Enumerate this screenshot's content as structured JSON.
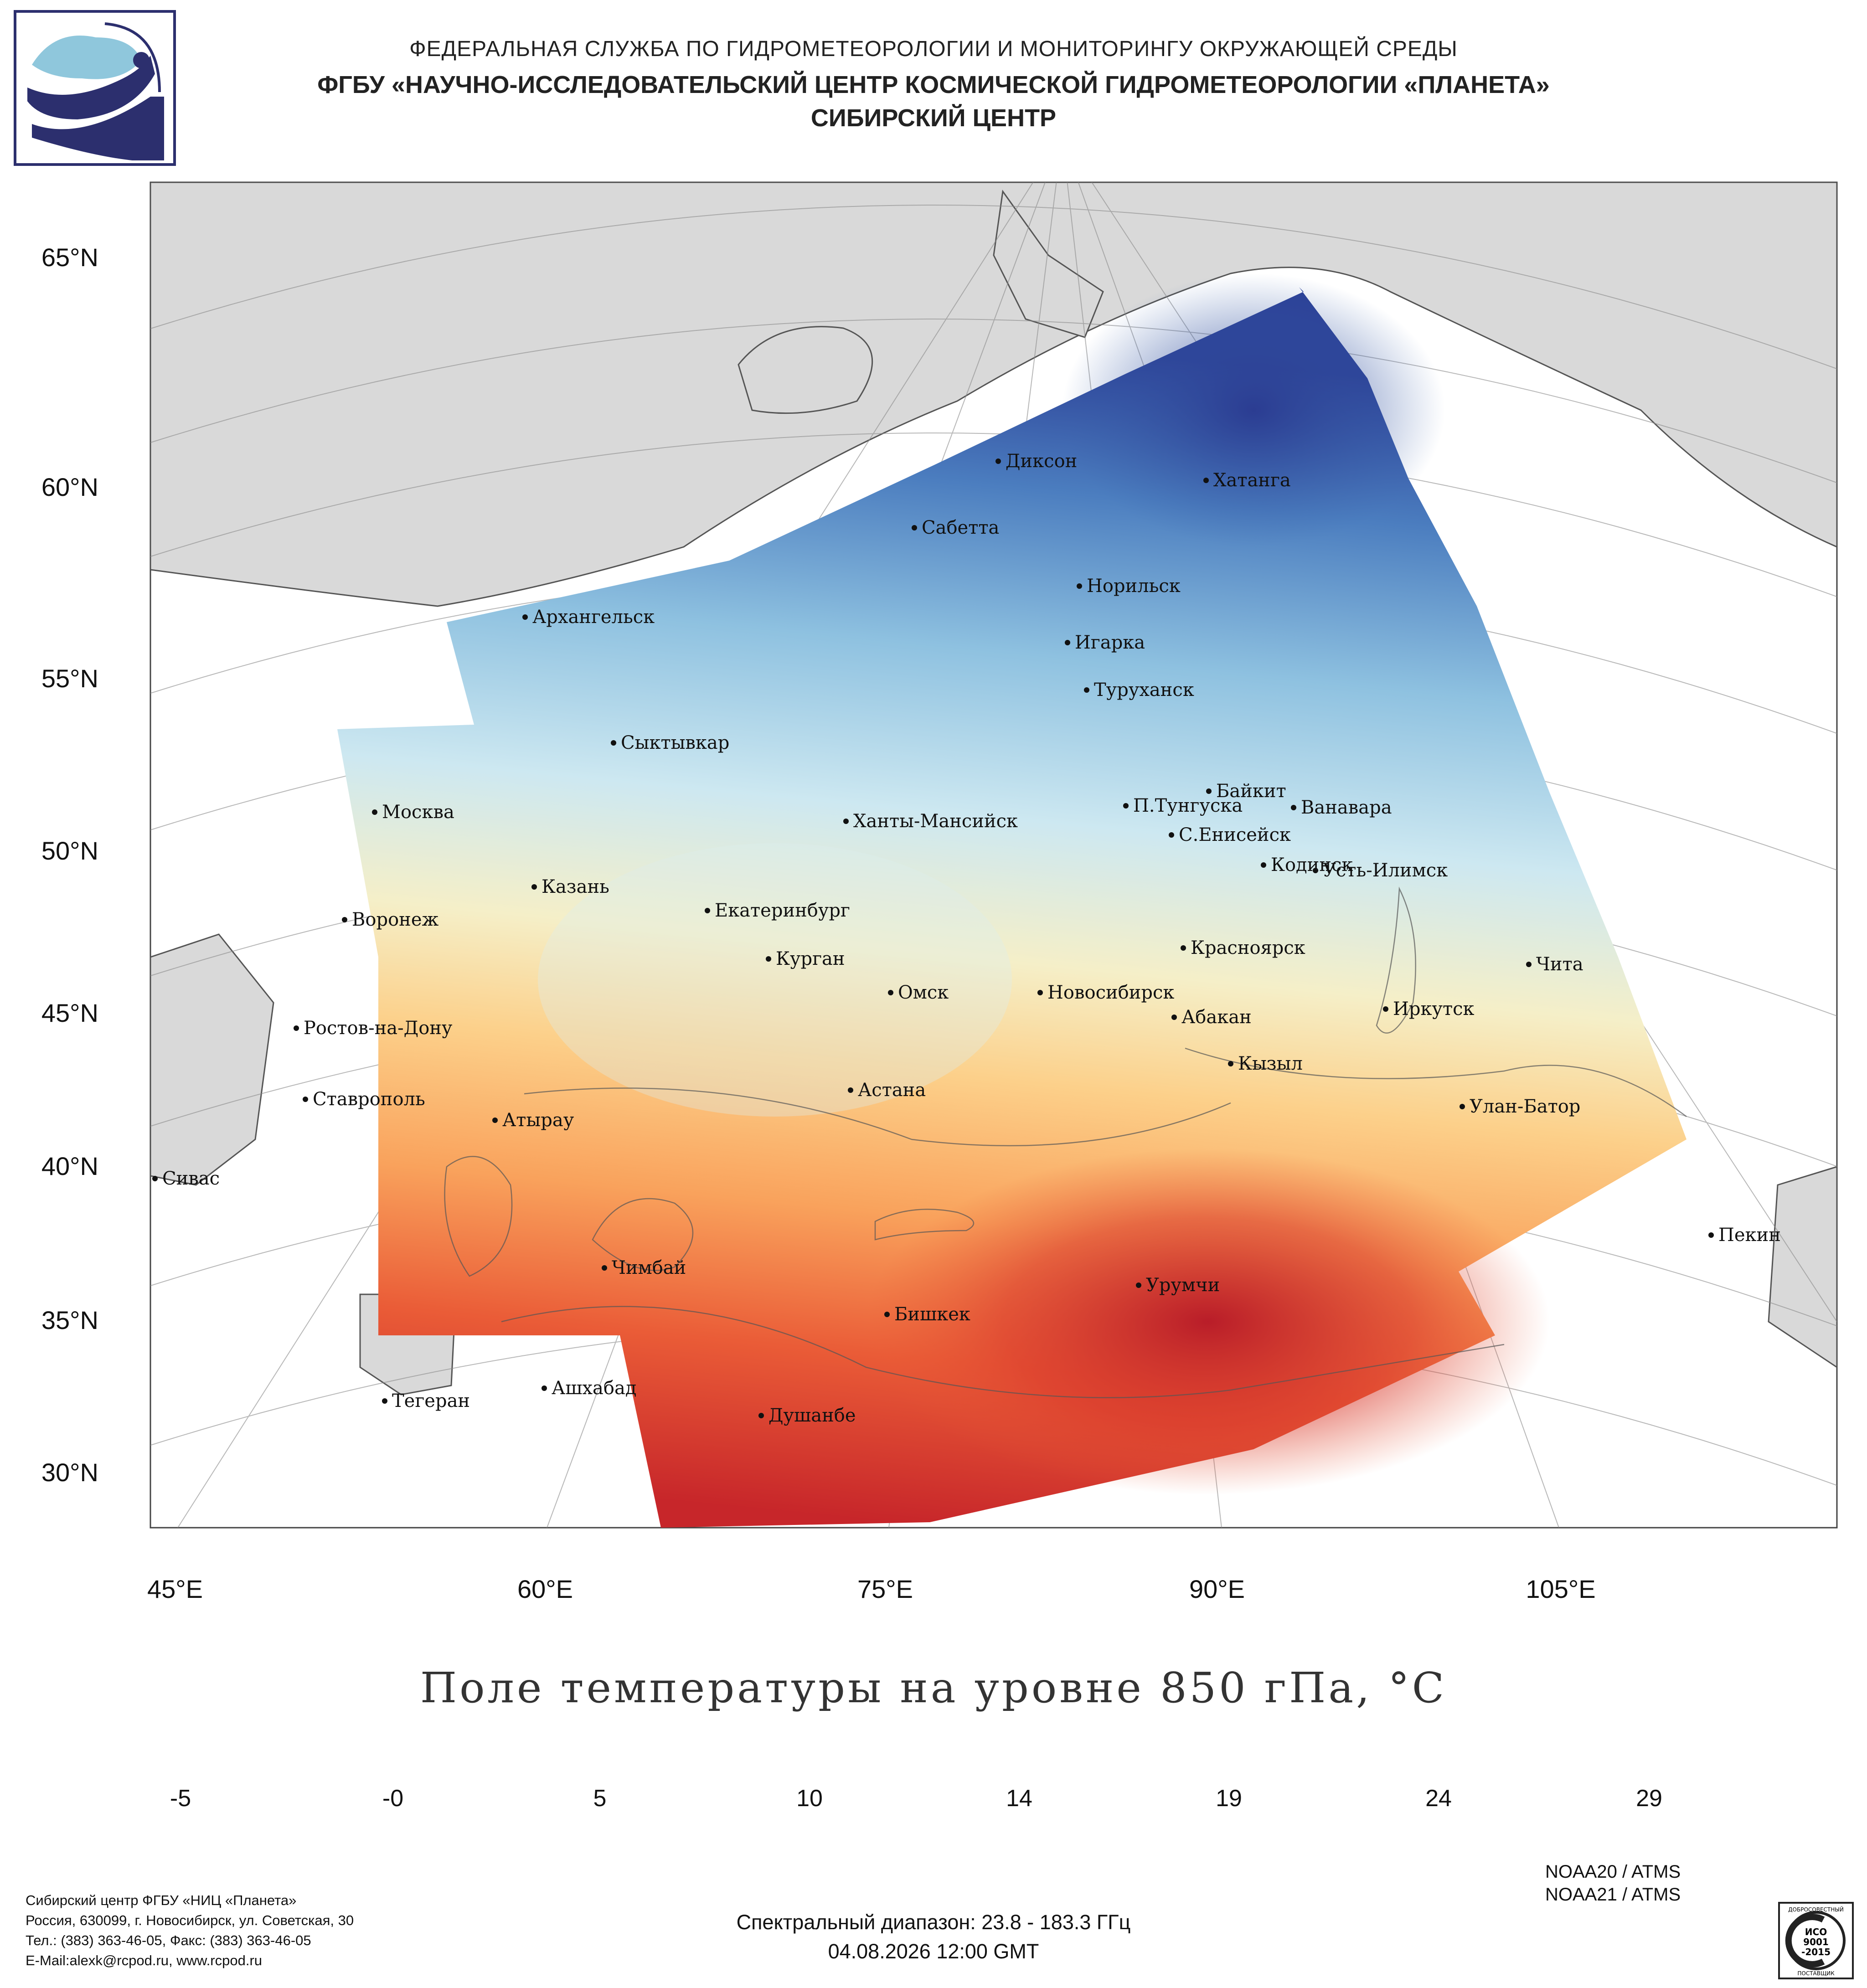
{
  "header": {
    "line1": "ФЕДЕРАЛЬНАЯ СЛУЖБА ПО ГИДРОМЕТЕОРОЛОГИИ И МОНИТОРИНГУ ОКРУЖАЮЩЕЙ СРЕДЫ",
    "line2": "ФГБУ «НАУЧНО-ИССЛЕДОВАТЕЛЬСКИЙ ЦЕНТР КОСМИЧЕСКОЙ ГИДРОМЕТЕОРОЛОГИИ «ПЛАНЕТА»",
    "line3": "СИБИРСКИЙ ЦЕНТР"
  },
  "map": {
    "lat_labels": [
      "65°N",
      "60°N",
      "55°N",
      "50°N",
      "45°N",
      "40°N",
      "35°N",
      "30°N"
    ],
    "lon_labels": [
      "45°E",
      "60°E",
      "75°E",
      "90°E",
      "105°E"
    ],
    "cities": [
      {
        "name": "Диксон"
      },
      {
        "name": "Хатанга"
      },
      {
        "name": "Сабетта"
      },
      {
        "name": "Норильск"
      },
      {
        "name": "Архангельск"
      },
      {
        "name": "Игарка"
      },
      {
        "name": "Туруханск"
      },
      {
        "name": "Сыктывкар"
      },
      {
        "name": "Байкит"
      },
      {
        "name": "П.Тунгуска"
      },
      {
        "name": "Ванавара"
      },
      {
        "name": "Москва"
      },
      {
        "name": "Ханты-Мансийск"
      },
      {
        "name": "С.Енисейск"
      },
      {
        "name": "Кодинск"
      },
      {
        "name": "Усть-Илимск"
      },
      {
        "name": "Казань"
      },
      {
        "name": "Екатеринбург"
      },
      {
        "name": "Воронеж"
      },
      {
        "name": "Красноярск"
      },
      {
        "name": "Курган"
      },
      {
        "name": "Чита"
      },
      {
        "name": "Омск"
      },
      {
        "name": "Новосибирск"
      },
      {
        "name": "Ростов-на-Дону"
      },
      {
        "name": "Абакан"
      },
      {
        "name": "Иркутск"
      },
      {
        "name": "Кызыл"
      },
      {
        "name": "Ставрополь"
      },
      {
        "name": "Астана"
      },
      {
        "name": "Улан-Батор"
      },
      {
        "name": "Атырау"
      },
      {
        "name": "Сивас"
      },
      {
        "name": "Пекин"
      },
      {
        "name": "Чимбай"
      },
      {
        "name": "Урумчи"
      },
      {
        "name": "Бишкек"
      },
      {
        "name": "Ашхабад"
      },
      {
        "name": "Тегеран"
      },
      {
        "name": "Душанбе"
      }
    ],
    "title": "Поле температуры на уровне 850 гПа, °С"
  },
  "colorbar": {
    "labels": [
      "-5",
      "-0",
      "5",
      "10",
      "14",
      "19",
      "24",
      "29"
    ],
    "colors": [
      "#2b3a94",
      "#3f6cb5",
      "#6fa3d2",
      "#a9d3ea",
      "#e4f1f4",
      "#fbe6a6",
      "#fcae62",
      "#f06a3c",
      "#d2322a",
      "#a50f26"
    ]
  },
  "footer": {
    "org": "Сибирский центр ФГБУ «НИЦ «Планета»",
    "address": "Россия, 630099, г. Новосибирск, ул. Советская, 30",
    "phone": "Тел.: (383) 363-46-05, Факс: (383) 363-46-05",
    "email": "E-Mail:alexk@rcpod.ru, www.rcpod.ru",
    "satellites": [
      "NOAA20 / ATMS",
      "NOAA21 / ATMS"
    ],
    "spectral": "Спектральный диапазон: 23.8 - 183.3 ГГц",
    "datetime": "04.08.2026 12:00 GMT",
    "iso_text": [
      "ДОБРОСОВЕСТНЫЙ",
      "ИСО",
      "9001",
      "-2015",
      "ПОСТАВЩИК"
    ]
  }
}
